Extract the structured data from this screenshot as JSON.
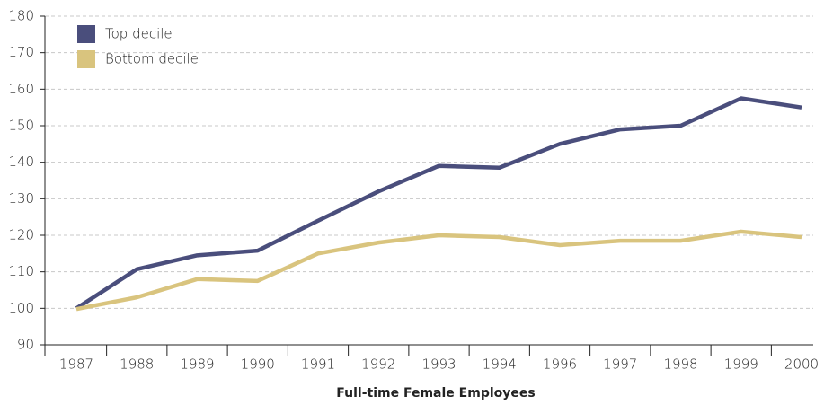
{
  "chart_data": {
    "type": "line",
    "x_label": "Full-time Female Employees",
    "categories": [
      "1987",
      "1988",
      "1989",
      "1990",
      "1991",
      "1992",
      "1993",
      "1994",
      "1996",
      "1997",
      "1998",
      "1999",
      "2000"
    ],
    "series": [
      {
        "name": "Top decile",
        "color": "#4a4e7c",
        "values": [
          100,
          110.7,
          114.5,
          115.8,
          124,
          132,
          139,
          138.5,
          145,
          149,
          150,
          157.5,
          155
        ]
      },
      {
        "name": "Bottom decile",
        "color": "#d9c47e",
        "values": [
          99.8,
          103,
          108,
          107.5,
          115,
          118,
          120,
          119.5,
          117.3,
          118.5,
          118.5,
          121,
          119.5
        ]
      }
    ],
    "ylim": [
      90,
      180
    ],
    "yticks": [
      90,
      100,
      110,
      120,
      130,
      140,
      150,
      160,
      170,
      180
    ],
    "grid": true,
    "legend": "top-left"
  }
}
